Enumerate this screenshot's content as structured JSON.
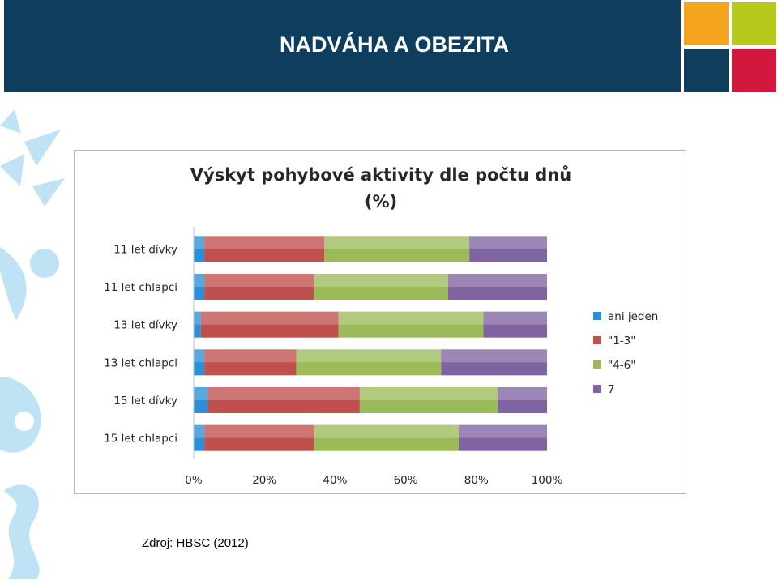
{
  "slide": {
    "title": "NADVÁHA  A OBEZITA",
    "source": "Zdroj: HBSC (2012)"
  },
  "colors": {
    "header_bg": "#0f3d5e",
    "accent_orange": "#f4a51d",
    "accent_green": "#b6c91c",
    "accent_red": "#d3173f",
    "decor_blue": "#bfe3f4"
  },
  "chart_data": {
    "type": "bar",
    "orientation": "horizontal",
    "stacked": "percent",
    "title": "Výskyt pohybové aktivity dle počtu dnů (%)",
    "title_lines": [
      "Výskyt pohybové aktivity dle počtu dnů",
      "(%)"
    ],
    "categories": [
      "11 let dívky",
      "11 let chlapci",
      "13 let dívky",
      "13 let chlapci",
      "15 let dívky",
      "15 let chlapci"
    ],
    "series": [
      {
        "name": "ani jeden",
        "color": "#2a8fd6",
        "values": [
          3,
          3,
          2,
          3,
          4,
          3
        ]
      },
      {
        "name": "\"1-3\"",
        "color": "#c0504d",
        "values": [
          34,
          31,
          39,
          26,
          43,
          31
        ]
      },
      {
        "name": "\"4-6\"",
        "color": "#9bbb59",
        "values": [
          41,
          38,
          41,
          41,
          39,
          41
        ]
      },
      {
        "name": "7",
        "color": "#8064a2",
        "values": [
          22,
          28,
          18,
          30,
          14,
          25
        ]
      }
    ],
    "xlim": [
      0,
      100
    ],
    "xticks": [
      "0%",
      "20%",
      "40%",
      "60%",
      "80%",
      "100%"
    ],
    "legend_position": "right",
    "grid": false
  }
}
